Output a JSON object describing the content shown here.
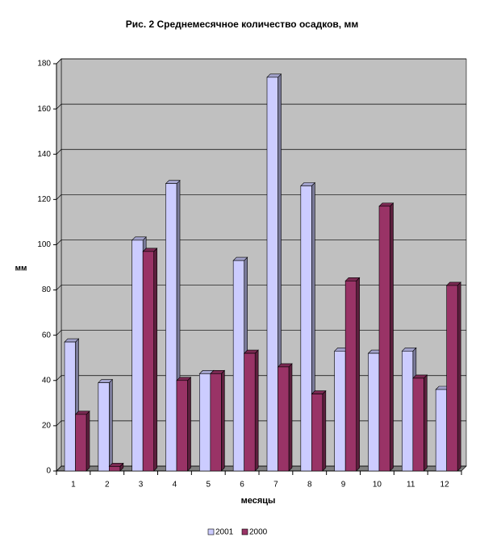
{
  "chart_data": {
    "type": "bar3d",
    "title": "Рис. 2 Среднемесячное количество осадков, мм",
    "y_label": "мм",
    "x_label": "месяцы",
    "categories": [
      "1",
      "2",
      "3",
      "4",
      "5",
      "6",
      "7",
      "8",
      "9",
      "10",
      "11",
      "12"
    ],
    "series": [
      {
        "name": "2001",
        "color": "#ccccff",
        "values": [
          57,
          39,
          102,
          127,
          43,
          93,
          174,
          126,
          53,
          52,
          53,
          36
        ]
      },
      {
        "name": "2000",
        "color": "#993366",
        "values": [
          25,
          2,
          97,
          40,
          43,
          52,
          46,
          34,
          84,
          117,
          41,
          82
        ]
      }
    ],
    "ylim": [
      0,
      180
    ],
    "yticks": [
      0,
      20,
      40,
      60,
      80,
      100,
      120,
      140,
      160,
      180
    ],
    "grid": true
  }
}
